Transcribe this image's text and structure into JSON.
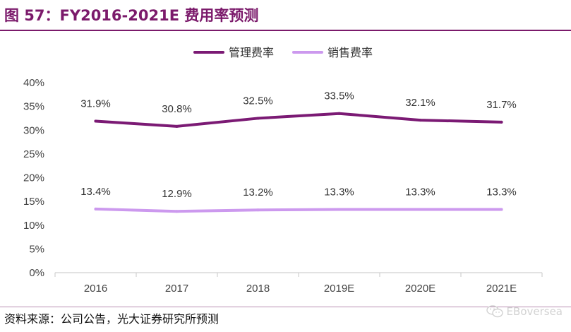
{
  "header": {
    "title": "图 57：FY2016-2021E 费用率预测"
  },
  "footer": {
    "source": "资料来源：公司公告，光大证券研究所预测",
    "watermark": "EBoversea"
  },
  "colors": {
    "brand": "#7b1a6b",
    "series_admin": "#7b1a74",
    "series_sales": "#cc99ee",
    "axis": "#d0d0d0"
  },
  "chart_data": {
    "type": "line",
    "title": "",
    "xlabel": "",
    "ylabel": "",
    "categories": [
      "2016",
      "2017",
      "2018",
      "2019E",
      "2020E",
      "2021E"
    ],
    "y_ticks": [
      "0%",
      "5%",
      "10%",
      "15%",
      "20%",
      "25%",
      "30%",
      "35%",
      "40%"
    ],
    "ylim": [
      0,
      40
    ],
    "y_unit": "%",
    "grid": false,
    "legend_position": "top-center",
    "series": [
      {
        "name": "管理费率",
        "values": [
          31.9,
          30.8,
          32.5,
          33.5,
          32.1,
          31.7
        ],
        "labels": [
          "31.9%",
          "30.8%",
          "32.5%",
          "33.5%",
          "32.1%",
          "31.7%"
        ],
        "color": "#7b1a74"
      },
      {
        "name": "销售费率",
        "values": [
          13.4,
          12.9,
          13.2,
          13.3,
          13.3,
          13.3
        ],
        "labels": [
          "13.4%",
          "12.9%",
          "13.2%",
          "13.3%",
          "13.3%",
          "13.3%"
        ],
        "color": "#cc99ee"
      }
    ]
  }
}
